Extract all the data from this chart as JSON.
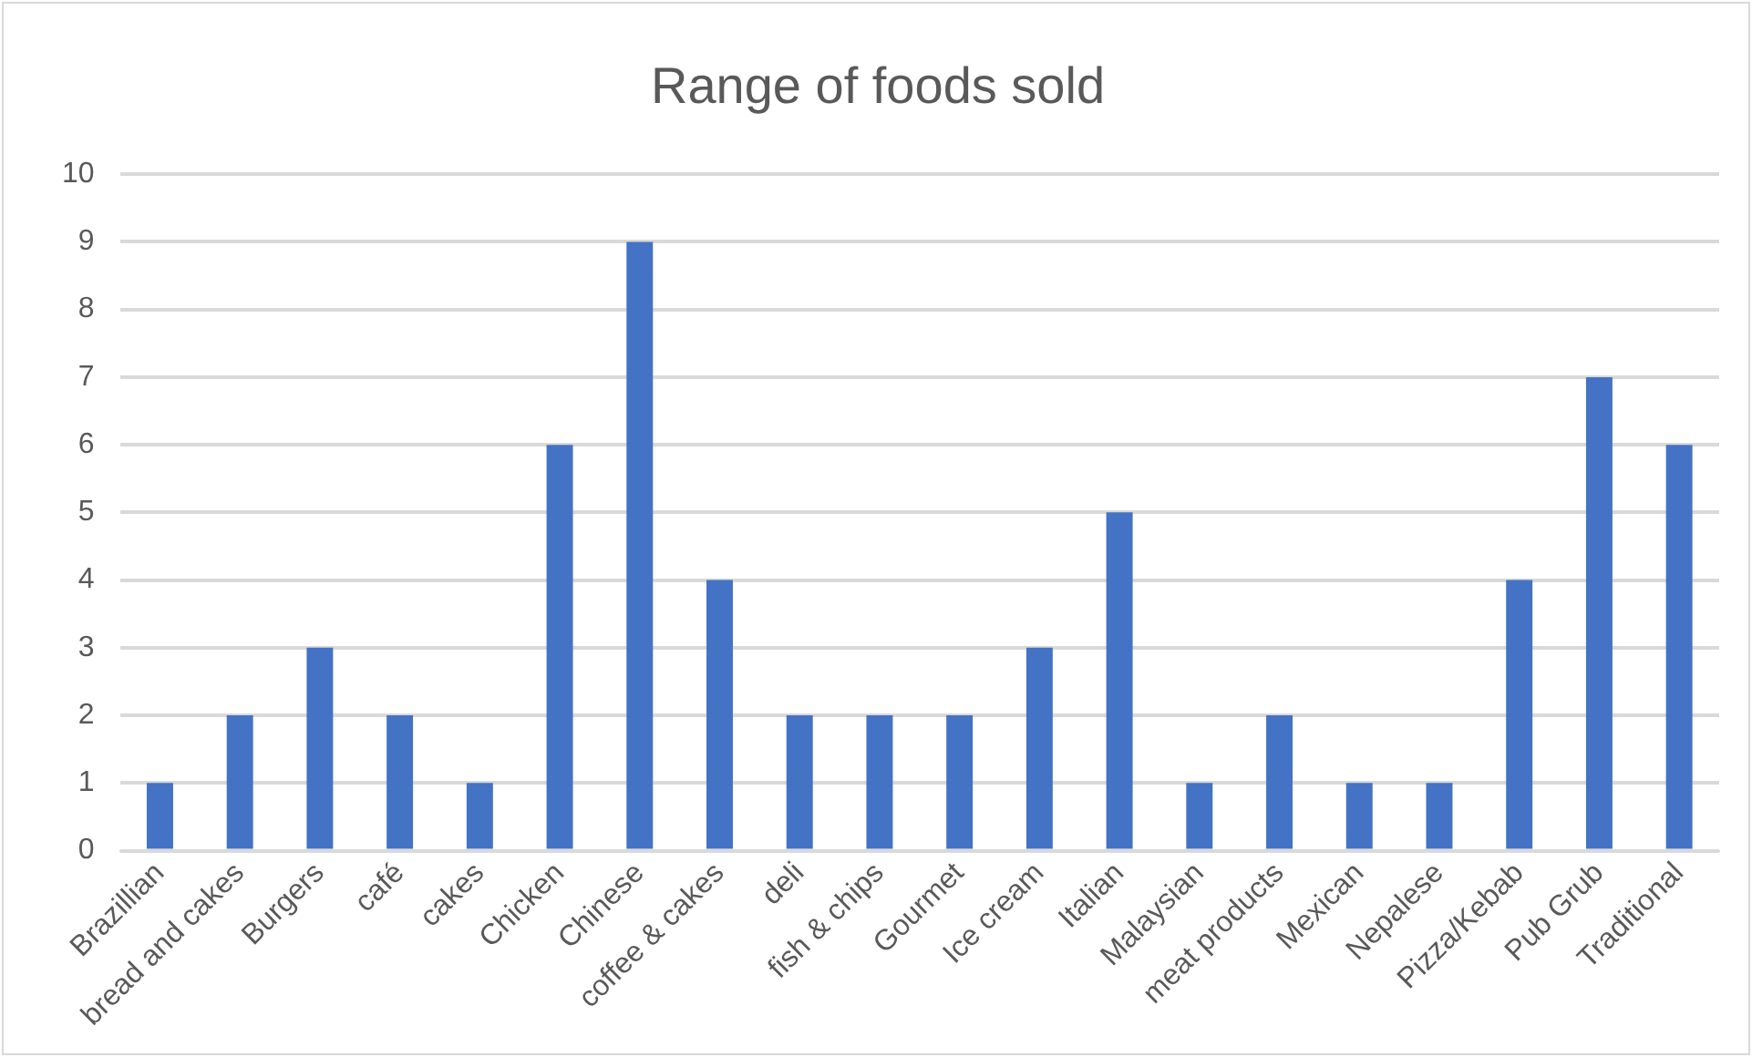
{
  "chart_data": {
    "type": "bar",
    "title": "Range of foods sold",
    "categories": [
      "Brazillian",
      "bread and cakes",
      "Burgers",
      "café",
      "cakes",
      "Chicken",
      "Chinese",
      "coffee & cakes",
      "deli",
      "fish & chips",
      "Gourmet",
      "Ice cream",
      "Italian",
      "Malaysian",
      "meat products",
      "Mexican",
      "Nepalese",
      "Pizza/Kebab",
      "Pub Grub",
      "Traditional"
    ],
    "values": [
      1,
      2,
      3,
      2,
      1,
      6,
      9,
      4,
      2,
      2,
      2,
      3,
      5,
      1,
      2,
      1,
      1,
      4,
      7,
      6
    ],
    "color": "#4472c4",
    "ylim": [
      0,
      10
    ],
    "yticks": [
      0,
      1,
      2,
      3,
      4,
      5,
      6,
      7,
      8,
      9,
      10
    ],
    "grid": "y",
    "legend": false
  }
}
